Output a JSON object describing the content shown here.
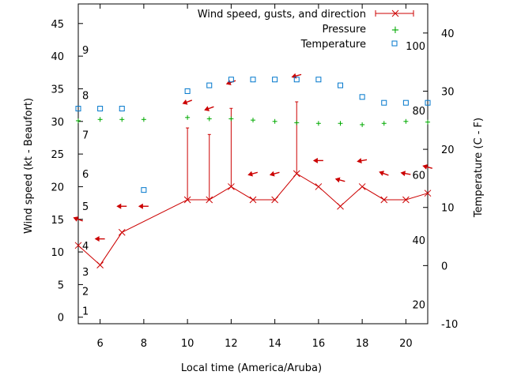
{
  "chart_data": {
    "type": "line",
    "xlabel": "Local time (America/Aruba)",
    "ylabel_left": "Wind speed (kt - Beaufort)",
    "ylabel_right": "Temperature (C - F)",
    "xlim": [
      5,
      21
    ],
    "ylim_left": [
      -1,
      48
    ],
    "ylim_right": [
      -10,
      45
    ],
    "x_ticks": [
      6,
      8,
      10,
      12,
      14,
      16,
      18,
      20
    ],
    "y_left_ticks": [
      0,
      5,
      10,
      15,
      20,
      25,
      30,
      35,
      40,
      45
    ],
    "y_right_ticks": [
      -10,
      0,
      10,
      20,
      30,
      40
    ],
    "beaufort_labels": [
      {
        "label": "1",
        "kt": 1
      },
      {
        "label": "2",
        "kt": 4
      },
      {
        "label": "3",
        "kt": 7
      },
      {
        "label": "4",
        "kt": 11
      },
      {
        "label": "5",
        "kt": 17
      },
      {
        "label": "6",
        "kt": 22
      },
      {
        "label": "7",
        "kt": 28
      },
      {
        "label": "8",
        "kt": 34
      },
      {
        "label": "9",
        "kt": 41
      }
    ],
    "fahrenheit_labels": [
      {
        "label": "20",
        "c": -6.7
      },
      {
        "label": "40",
        "c": 4.4
      },
      {
        "label": "60",
        "c": 15.6
      },
      {
        "label": "80",
        "c": 26.7
      },
      {
        "label": "100",
        "c": 37.8
      }
    ],
    "legend": {
      "position": "top-right",
      "wind": "Wind speed, gusts, and direction",
      "pressure": "Pressure",
      "temperature": "Temperature"
    },
    "series": {
      "wind_speed": {
        "name": "Wind speed",
        "color": "#cc0000",
        "x": [
          5,
          6,
          7,
          10,
          11,
          12,
          13,
          14,
          15,
          16,
          17,
          18,
          19,
          20,
          21
        ],
        "y": [
          11,
          8,
          13,
          18,
          18,
          20,
          18,
          18,
          22,
          20,
          17,
          20,
          18,
          18,
          19
        ]
      },
      "gusts": {
        "name": "Gusts",
        "x": [
          10,
          11,
          12,
          15
        ],
        "base": [
          18,
          18,
          20,
          22
        ],
        "top": [
          29,
          28,
          32,
          33
        ]
      },
      "direction_arrows": {
        "name": "Wind direction",
        "color": "#cc0000",
        "points": [
          {
            "x": 5,
            "kt": 15,
            "angle": 200
          },
          {
            "x": 6,
            "kt": 12,
            "angle": 180
          },
          {
            "x": 7,
            "kt": 17,
            "angle": 180
          },
          {
            "x": 8,
            "kt": 17,
            "angle": 180
          },
          {
            "x": 10,
            "kt": 33,
            "angle": 160
          },
          {
            "x": 11,
            "kt": 32,
            "angle": 160
          },
          {
            "x": 12,
            "kt": 36,
            "angle": 160
          },
          {
            "x": 13,
            "kt": 22,
            "angle": 165
          },
          {
            "x": 14,
            "kt": 22,
            "angle": 165
          },
          {
            "x": 15,
            "kt": 37,
            "angle": 165
          },
          {
            "x": 16,
            "kt": 24,
            "angle": 180
          },
          {
            "x": 17,
            "kt": 21,
            "angle": 195
          },
          {
            "x": 18,
            "kt": 24,
            "angle": 170
          },
          {
            "x": 19,
            "kt": 22,
            "angle": 200
          },
          {
            "x": 20,
            "kt": 22,
            "angle": 190
          },
          {
            "x": 21,
            "kt": 23,
            "angle": 195
          }
        ]
      },
      "pressure": {
        "name": "Pressure",
        "color": "#00aa00",
        "unit_axis": "left",
        "x": [
          5,
          6,
          7,
          8,
          10,
          11,
          12,
          13,
          14,
          15,
          16,
          17,
          18,
          19,
          20,
          21
        ],
        "y": [
          30.1,
          30.3,
          30.3,
          30.3,
          30.6,
          30.4,
          30.4,
          30.2,
          30.0,
          29.8,
          29.7,
          29.7,
          29.5,
          29.7,
          30.0,
          29.9
        ]
      },
      "temperature": {
        "name": "Temperature",
        "color": "#0077cc",
        "unit_axis": "right",
        "x": [
          5,
          6,
          7,
          8,
          10,
          11,
          12,
          13,
          14,
          15,
          16,
          17,
          18,
          19,
          20,
          21
        ],
        "y": [
          27,
          27,
          27,
          13,
          30,
          31,
          32,
          32,
          32,
          32,
          32,
          31,
          29,
          28,
          28,
          28
        ]
      }
    }
  }
}
